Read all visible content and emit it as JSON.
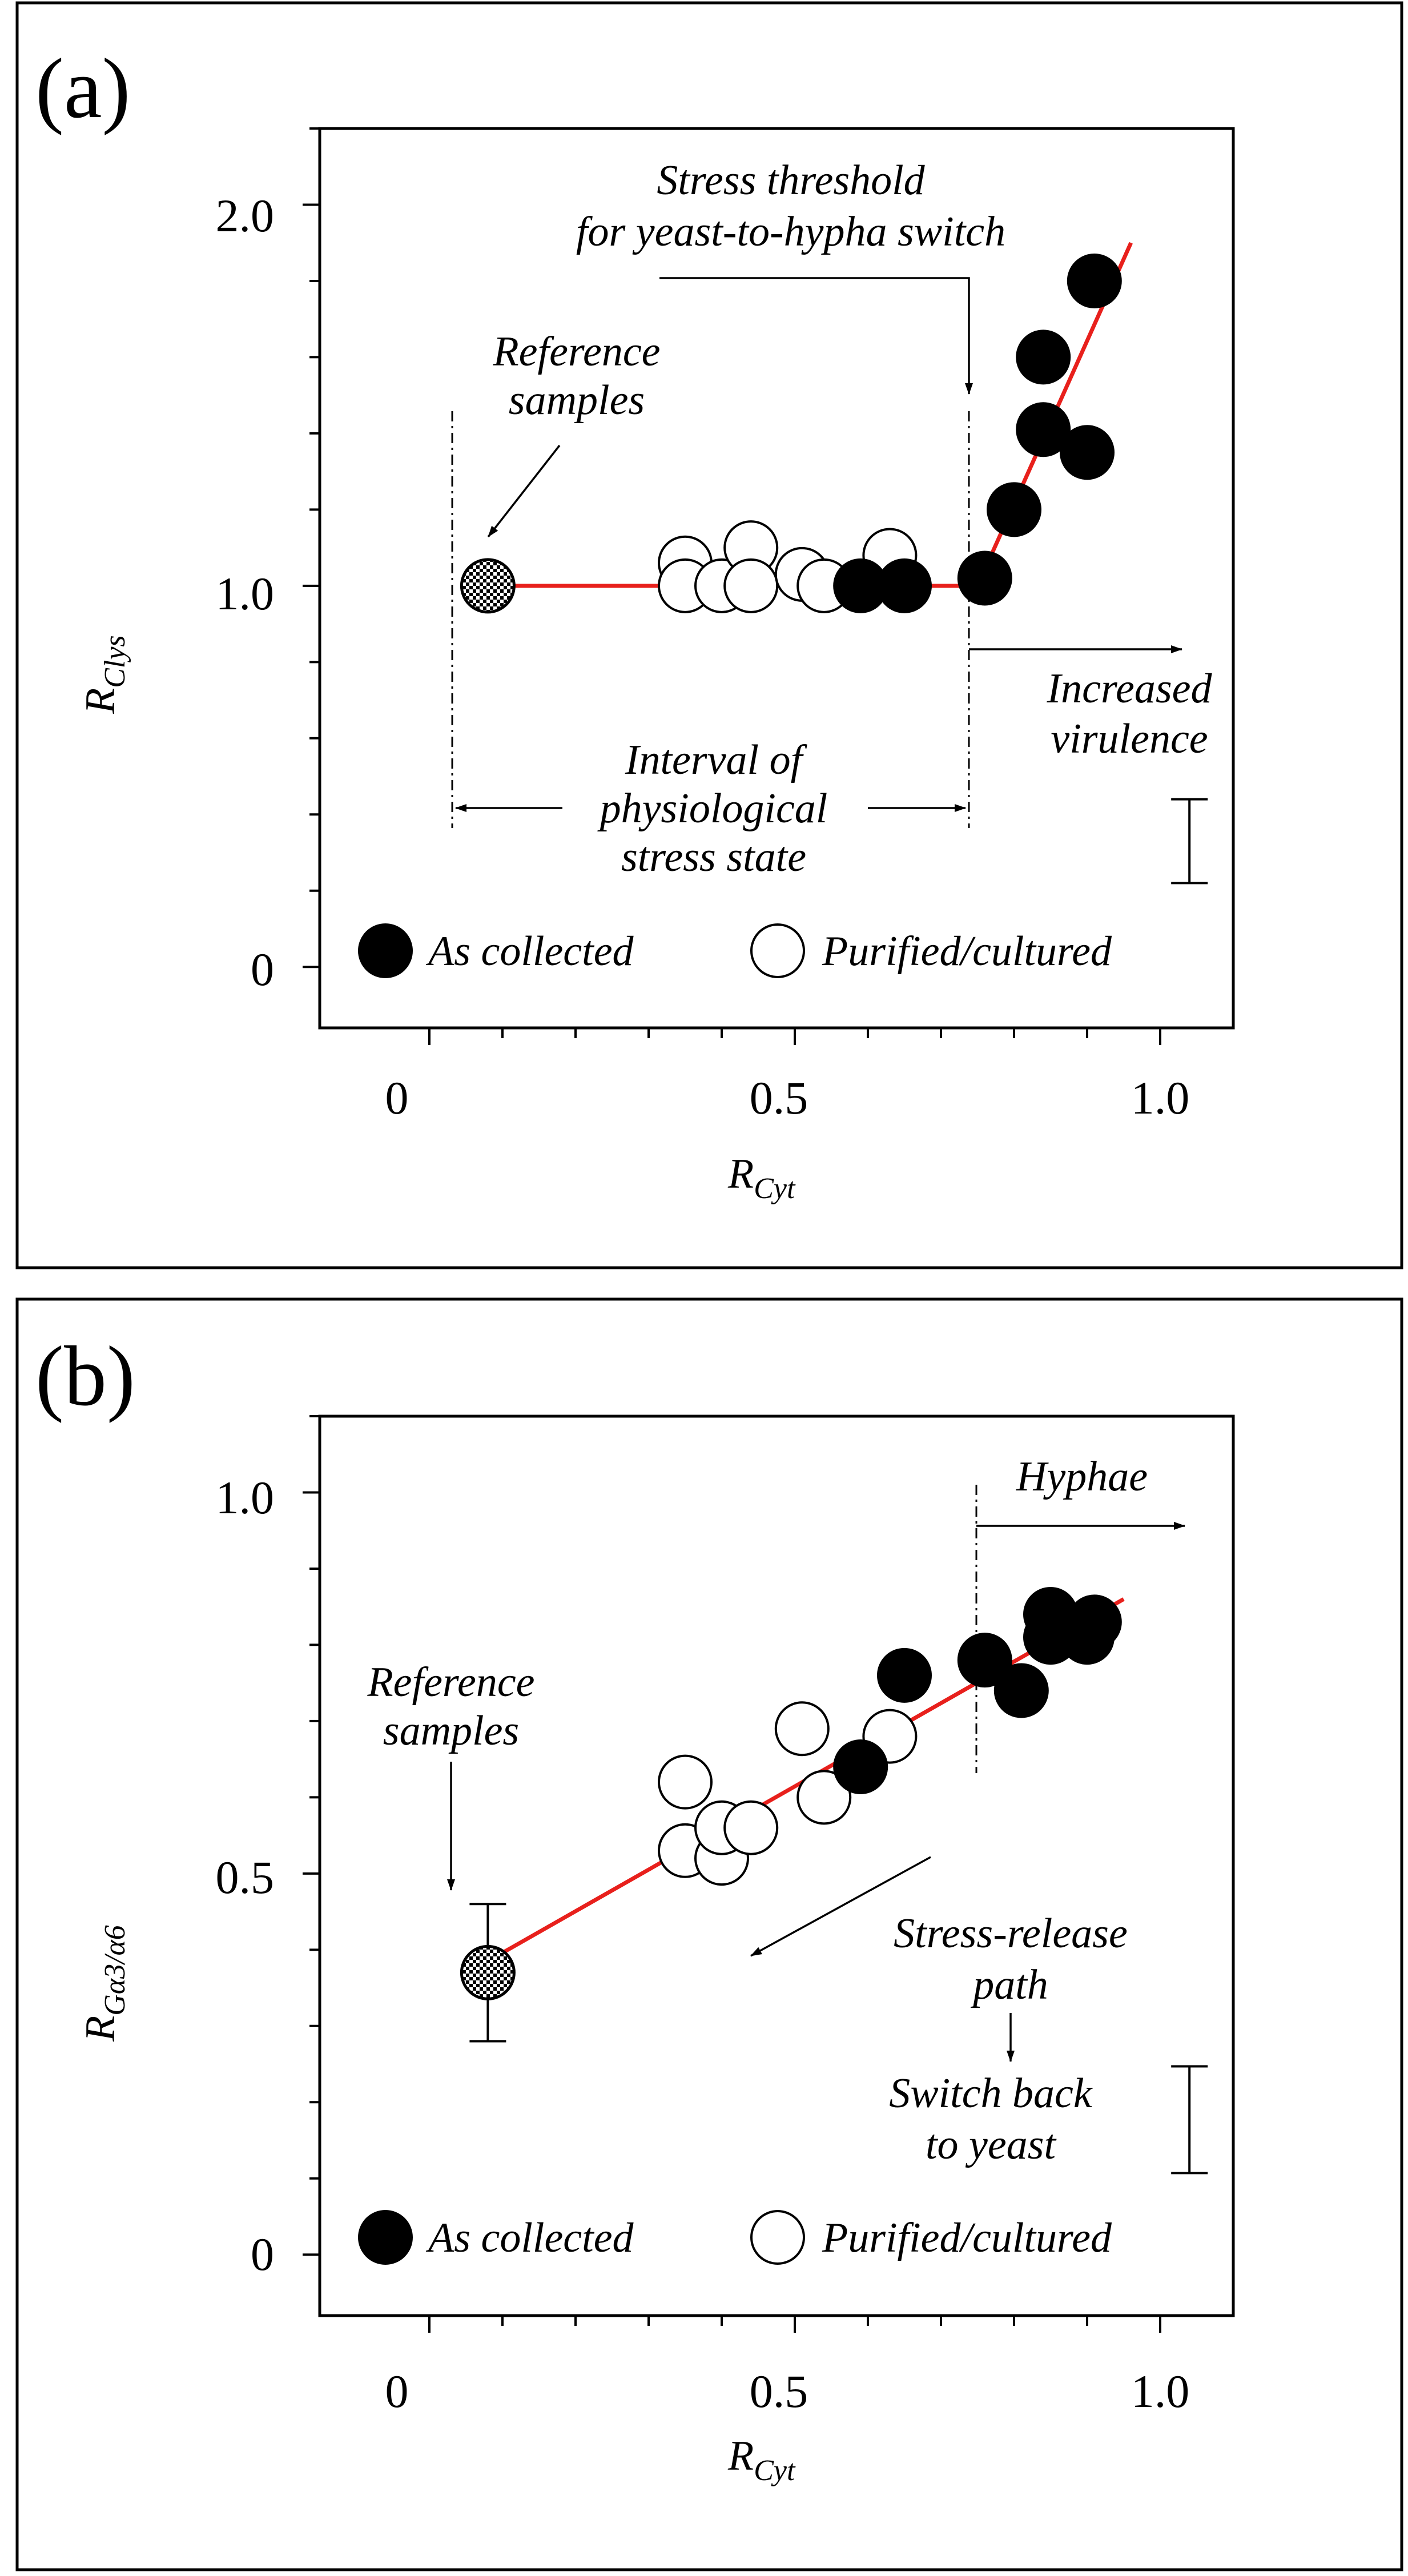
{
  "colors": {
    "fit_line": "#e8201c",
    "as_collected": "#000000",
    "purified": "#ffffff",
    "axes": "#000000"
  },
  "chart_data": [
    {
      "panel_label": "(a)",
      "type": "scatter",
      "xlabel": {
        "main": "R",
        "sub": "Cyt"
      },
      "ylabel": {
        "main": "R",
        "sub": "Clys"
      },
      "xlim": [
        -0.15,
        1.1
      ],
      "ylim": [
        -0.16,
        2.2
      ],
      "x_ticks": [
        "0",
        "0.5",
        "1.0"
      ],
      "y_ticks": [
        "0",
        "1.0",
        "2.0"
      ],
      "legend": {
        "as_collected": "As collected",
        "purified": "Purified/cultured"
      },
      "annotations": {
        "threshold_line1": "Stress threshold",
        "threshold_line2": "for yeast-to-hypha switch",
        "reference_line1": "Reference",
        "reference_line2": "samples",
        "interval_line1": "Interval of",
        "interval_line2": "physiological",
        "interval_line3": "stress state",
        "virulence_line1": "Increased",
        "virulence_line2": "virulence"
      },
      "reference_point": {
        "x": 0.08,
        "y": 1.0
      },
      "threshold_x": 0.75,
      "fit_line": [
        [
          0.08,
          1.0
        ],
        [
          0.75,
          1.0
        ],
        [
          0.96,
          1.9
        ]
      ],
      "error_bar": {
        "x": 1.04,
        "y": 0.33,
        "half_range": 0.11
      },
      "series": [
        {
          "name": "Purified/cultured",
          "points": [
            [
              0.35,
              1.06
            ],
            [
              0.35,
              1.0
            ],
            [
              0.4,
              1.0
            ],
            [
              0.44,
              1.1
            ],
            [
              0.44,
              1.0
            ],
            [
              0.51,
              1.03
            ],
            [
              0.54,
              1.0
            ],
            [
              0.63,
              1.08
            ]
          ]
        },
        {
          "name": "As collected",
          "points": [
            [
              0.59,
              1.0
            ],
            [
              0.65,
              1.0
            ],
            [
              0.76,
              1.02
            ],
            [
              0.8,
              1.2
            ],
            [
              0.84,
              1.6
            ],
            [
              0.84,
              1.41
            ],
            [
              0.9,
              1.35
            ],
            [
              0.91,
              1.8
            ]
          ]
        }
      ]
    },
    {
      "panel_label": "(b)",
      "type": "scatter",
      "xlabel": {
        "main": "R",
        "sub": "Cyt"
      },
      "ylabel": {
        "main": "R",
        "sub": "Gα3/α6"
      },
      "xlim": [
        -0.15,
        1.1
      ],
      "ylim": [
        -0.08,
        1.1
      ],
      "x_ticks": [
        "0",
        "0.5",
        "1.0"
      ],
      "y_ticks": [
        "0",
        "0.5",
        "1.0"
      ],
      "legend": {
        "as_collected": "As collected",
        "purified": "Purified/cultured"
      },
      "annotations": {
        "hyphae": "Hyphae",
        "reference_line1": "Reference",
        "reference_line2": "samples",
        "release_line1": "Stress-release",
        "release_line2": "path",
        "switch_line1": "Switch back",
        "switch_line2": "to yeast"
      },
      "reference_point": {
        "x": 0.08,
        "y": 0.37,
        "err": 0.09
      },
      "threshold_x": 0.76,
      "fit_line": [
        [
          0.08,
          0.385
        ],
        [
          0.95,
          0.86
        ]
      ],
      "error_bar": {
        "x": 1.04,
        "y": 0.177,
        "half_range": 0.07
      },
      "series": [
        {
          "name": "Purified/cultured",
          "points": [
            [
              0.35,
              0.53
            ],
            [
              0.35,
              0.62
            ],
            [
              0.4,
              0.52
            ],
            [
              0.4,
              0.56
            ],
            [
              0.44,
              0.56
            ],
            [
              0.51,
              0.69
            ],
            [
              0.54,
              0.6
            ],
            [
              0.63,
              0.68
            ]
          ]
        },
        {
          "name": "As collected",
          "points": [
            [
              0.59,
              0.64
            ],
            [
              0.65,
              0.76
            ],
            [
              0.76,
              0.78
            ],
            [
              0.81,
              0.74
            ],
            [
              0.85,
              0.84
            ],
            [
              0.85,
              0.81
            ],
            [
              0.9,
              0.81
            ],
            [
              0.91,
              0.83
            ]
          ]
        }
      ]
    }
  ]
}
